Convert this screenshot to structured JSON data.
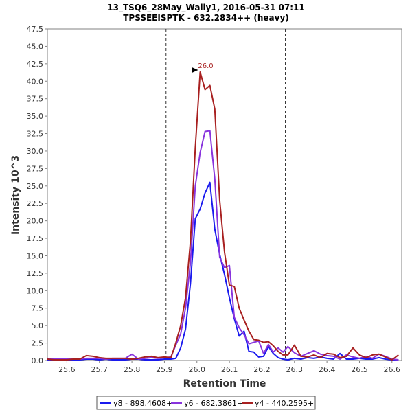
{
  "chart_data": {
    "type": "line",
    "title": "13_TSQ6_28May_Wally1, 2016-05-31 07:11",
    "subtitle": "TPSSEEISPTK - 632.2834++ (heavy)",
    "xlabel": "Retention Time",
    "ylabel": "Intensity 10^3",
    "xlim": [
      25.54,
      26.63
    ],
    "ylim": [
      0,
      47.5
    ],
    "x_ticks": [
      25.6,
      25.7,
      25.8,
      25.9,
      26.0,
      26.1,
      26.2,
      26.3,
      26.4,
      26.5,
      26.6
    ],
    "y_ticks": [
      0.0,
      2.5,
      5.0,
      7.5,
      10.0,
      12.5,
      15.0,
      17.5,
      20.0,
      22.5,
      25.0,
      27.5,
      30.0,
      32.5,
      35.0,
      37.5,
      40.0,
      42.5,
      45.0,
      47.5
    ],
    "vlines": [
      25.905,
      26.272
    ],
    "annotation": {
      "text": "26.0",
      "x": 26.01,
      "y": 41.3,
      "color": "#a82020"
    },
    "series": [
      {
        "name": "y8 - 898.4608+",
        "color": "#1a1aee",
        "x": [
          25.54,
          25.56,
          25.58,
          25.6,
          25.62,
          25.64,
          25.66,
          25.68,
          25.7,
          25.72,
          25.74,
          25.76,
          25.78,
          25.8,
          25.82,
          25.84,
          25.86,
          25.88,
          25.9,
          25.92,
          25.935,
          25.95,
          25.965,
          25.98,
          25.995,
          26.01,
          26.025,
          26.04,
          26.055,
          26.07,
          26.085,
          26.1,
          26.115,
          26.13,
          26.145,
          26.16,
          26.175,
          26.19,
          26.205,
          26.22,
          26.235,
          26.25,
          26.265,
          26.28,
          26.3,
          26.32,
          26.34,
          26.36,
          26.38,
          26.4,
          26.42,
          26.44,
          26.46,
          26.48,
          26.5,
          26.52,
          26.54,
          26.56,
          26.58,
          26.6,
          26.62
        ],
        "y": [
          0.1,
          0.1,
          0.1,
          0.1,
          0.1,
          0.1,
          0.2,
          0.2,
          0.1,
          0.2,
          0.1,
          0.1,
          0.1,
          0.2,
          0.2,
          0.1,
          0.1,
          0.1,
          0.2,
          0.2,
          0.3,
          1.8,
          4.5,
          11.0,
          20.3,
          21.7,
          24.0,
          25.5,
          18.8,
          15.2,
          12.3,
          9.0,
          6.0,
          3.5,
          4.2,
          1.3,
          1.2,
          0.5,
          0.6,
          2.0,
          1.0,
          0.4,
          0.2,
          0.1,
          0.3,
          0.2,
          0.4,
          0.3,
          0.5,
          0.3,
          0.2,
          1.0,
          0.2,
          0.2,
          0.3,
          0.2,
          0.2,
          0.4,
          0.2,
          0.1,
          0.1
        ]
      },
      {
        "name": "y6 - 682.3861+",
        "color": "#8833dd",
        "x": [
          25.54,
          25.56,
          25.58,
          25.6,
          25.62,
          25.64,
          25.66,
          25.68,
          25.7,
          25.72,
          25.74,
          25.76,
          25.78,
          25.8,
          25.82,
          25.84,
          25.86,
          25.88,
          25.9,
          25.92,
          25.935,
          25.95,
          25.965,
          25.98,
          25.995,
          26.01,
          26.025,
          26.04,
          26.055,
          26.07,
          26.085,
          26.1,
          26.115,
          26.13,
          26.145,
          26.16,
          26.175,
          26.19,
          26.205,
          26.22,
          26.235,
          26.25,
          26.265,
          26.28,
          26.3,
          26.32,
          26.34,
          26.36,
          26.38,
          26.4,
          26.42,
          26.44,
          26.46,
          26.48,
          26.5,
          26.52,
          26.54,
          26.56,
          26.58,
          26.6,
          26.62
        ],
        "y": [
          0.3,
          0.2,
          0.2,
          0.2,
          0.2,
          0.2,
          0.3,
          0.3,
          0.3,
          0.2,
          0.3,
          0.3,
          0.3,
          0.9,
          0.2,
          0.3,
          0.4,
          0.3,
          0.4,
          0.5,
          2.2,
          3.8,
          7.5,
          14.0,
          25.0,
          29.8,
          32.8,
          32.9,
          26.0,
          14.8,
          13.3,
          13.6,
          6.2,
          4.7,
          3.7,
          2.4,
          2.6,
          2.8,
          1.0,
          2.3,
          1.2,
          1.8,
          1.2,
          2.0,
          1.1,
          0.6,
          1.0,
          1.4,
          0.9,
          0.7,
          0.6,
          0.2,
          0.8,
          0.5,
          0.3,
          0.6,
          0.3,
          0.9,
          0.6,
          0.2,
          0.1
        ]
      },
      {
        "name": "y4 - 440.2595+",
        "color": "#a82020",
        "x": [
          25.54,
          25.56,
          25.58,
          25.6,
          25.62,
          25.64,
          25.66,
          25.68,
          25.7,
          25.72,
          25.74,
          25.76,
          25.78,
          25.8,
          25.82,
          25.84,
          25.86,
          25.88,
          25.9,
          25.92,
          25.935,
          25.95,
          25.965,
          25.98,
          25.995,
          26.01,
          26.025,
          26.04,
          26.055,
          26.07,
          26.085,
          26.1,
          26.115,
          26.13,
          26.145,
          26.16,
          26.175,
          26.19,
          26.205,
          26.22,
          26.235,
          26.25,
          26.265,
          26.28,
          26.3,
          26.32,
          26.34,
          26.36,
          26.38,
          26.4,
          26.42,
          26.44,
          26.46,
          26.48,
          26.5,
          26.52,
          26.54,
          26.56,
          26.58,
          26.6,
          26.62
        ],
        "y": [
          0.2,
          0.1,
          0.1,
          0.1,
          0.2,
          0.2,
          0.7,
          0.6,
          0.4,
          0.3,
          0.3,
          0.3,
          0.3,
          0.2,
          0.3,
          0.5,
          0.6,
          0.4,
          0.5,
          0.4,
          2.5,
          5.0,
          9.0,
          17.0,
          30.5,
          41.3,
          38.8,
          39.4,
          36.0,
          23.0,
          15.5,
          10.8,
          10.6,
          7.5,
          5.8,
          4.2,
          3.0,
          2.9,
          2.6,
          2.7,
          2.1,
          1.3,
          0.8,
          0.8,
          2.2,
          0.6,
          0.5,
          0.8,
          0.4,
          1.0,
          0.9,
          0.4,
          0.6,
          1.8,
          0.8,
          0.4,
          0.8,
          0.9,
          0.5,
          0.1,
          0.8
        ]
      }
    ]
  }
}
